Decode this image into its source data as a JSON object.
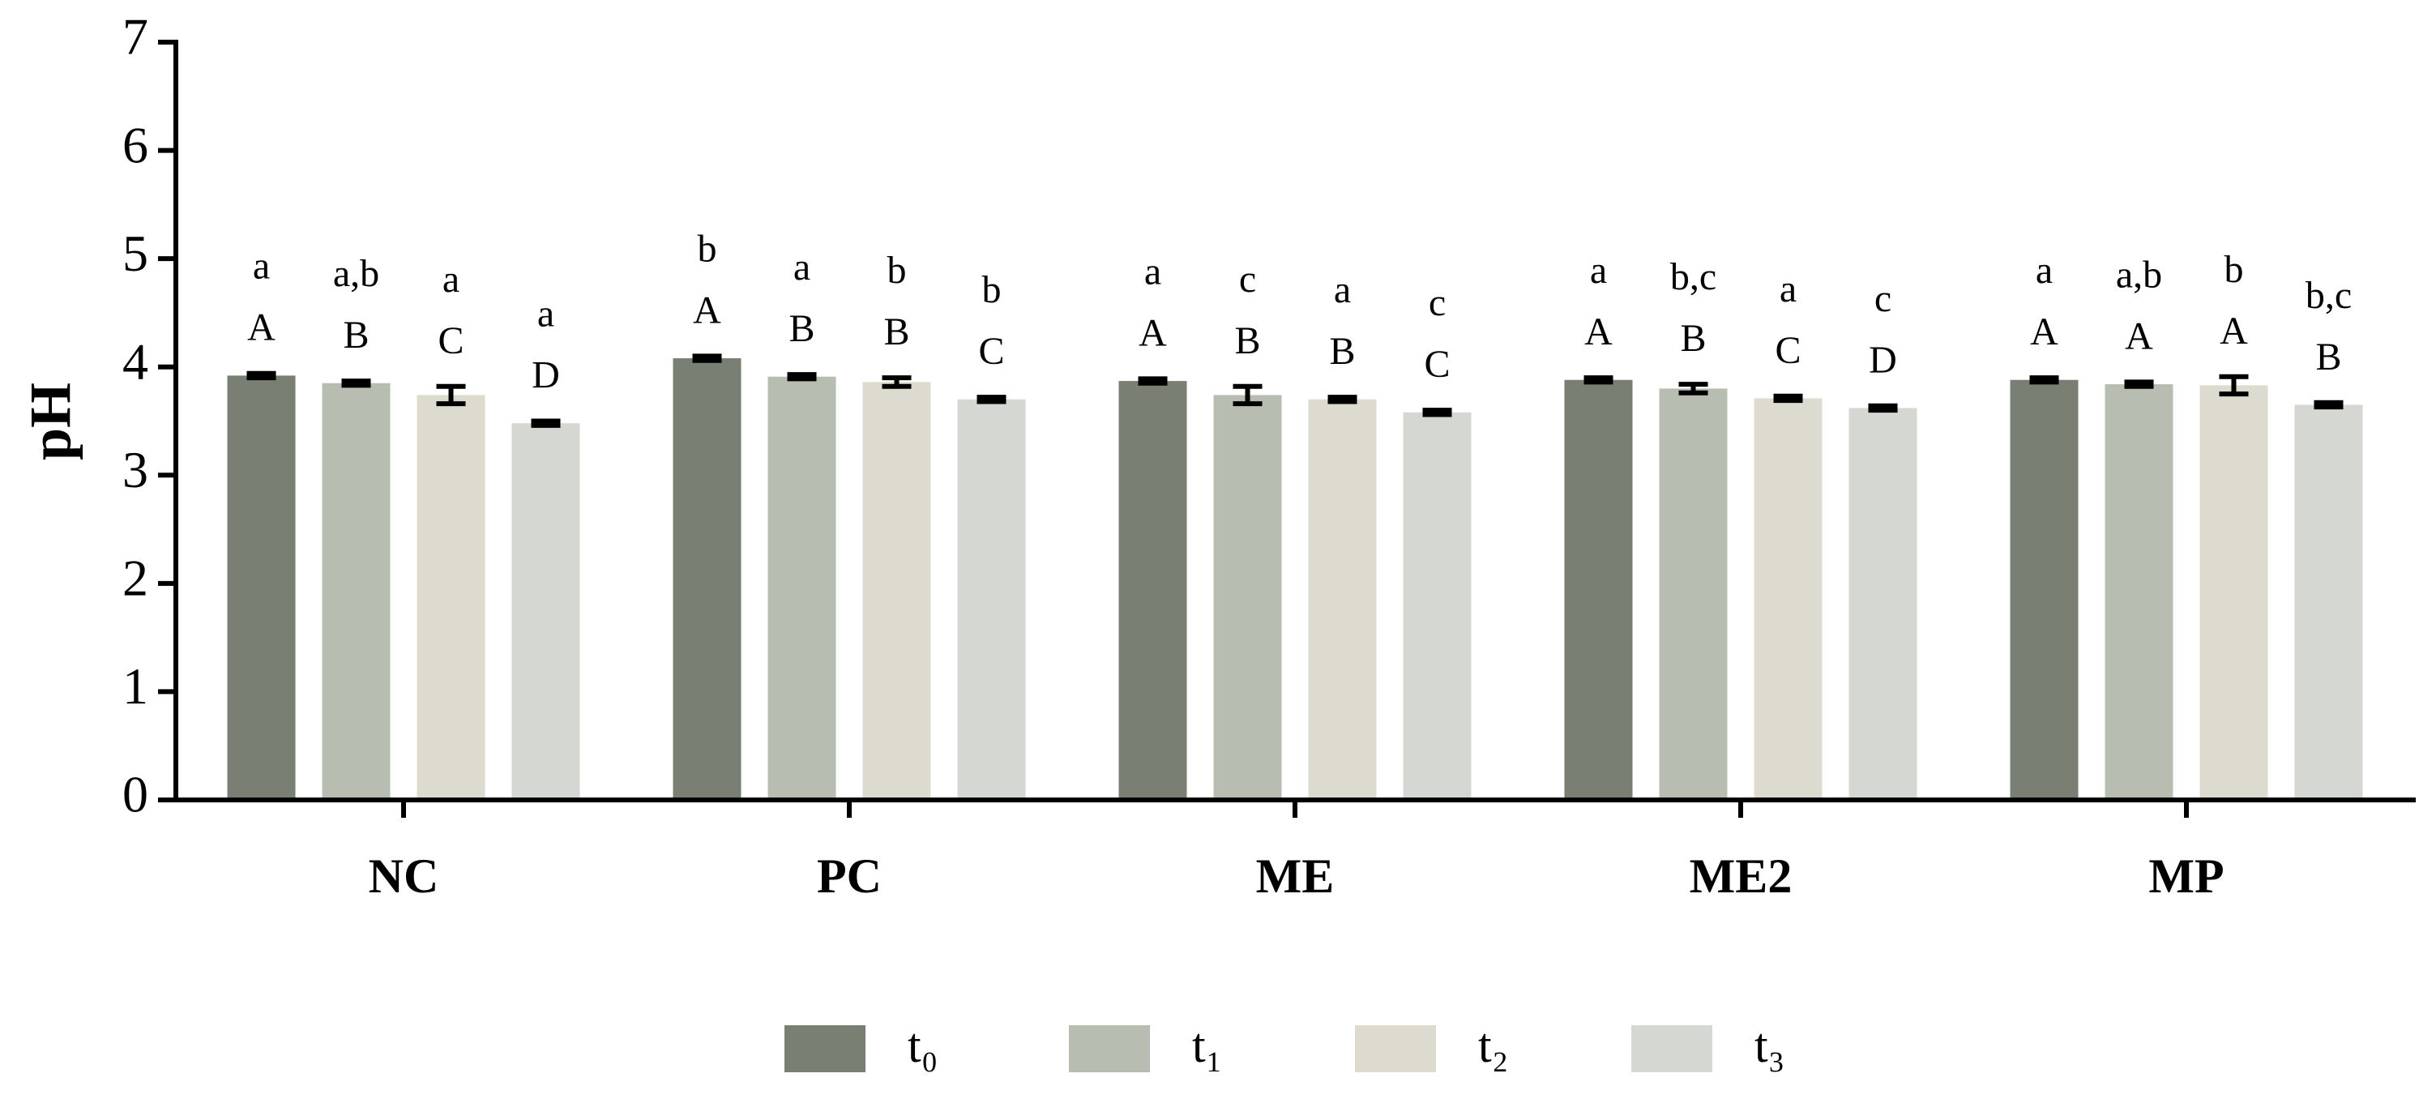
{
  "chart_data": {
    "type": "bar",
    "y_label": "pH",
    "categories": [
      "NC",
      "PC",
      "ME",
      "ME2",
      "MP"
    ],
    "ylim": [
      0,
      7
    ],
    "yticks": [
      0,
      1,
      2,
      3,
      4,
      5,
      6,
      7
    ],
    "legend": "bottom",
    "series": [
      {
        "name": "t₀",
        "color": "#7a7f73",
        "values": [
          3.92,
          4.08,
          3.87,
          3.88,
          3.88
        ],
        "errors": [
          0.02,
          0.02,
          0.02,
          0.02,
          0.02
        ],
        "upper_labels": [
          "A",
          "A",
          "A",
          "A",
          "A"
        ],
        "lower_labels": [
          "a",
          "b",
          "a",
          "a",
          "a"
        ]
      },
      {
        "name": "t₁",
        "color": "#b8bdb2",
        "values": [
          3.85,
          3.91,
          3.74,
          3.8,
          3.84
        ],
        "errors": [
          0.02,
          0.02,
          0.08,
          0.04,
          0.02
        ],
        "upper_labels": [
          "B",
          "B",
          "B",
          "B",
          "A"
        ],
        "lower_labels": [
          "a,b",
          "a",
          "c",
          "b,c",
          "a,b"
        ]
      },
      {
        "name": "t₂",
        "color": "#dddbcf",
        "values": [
          3.74,
          3.86,
          3.7,
          3.71,
          3.83
        ],
        "errors": [
          0.08,
          0.04,
          0.02,
          0.02,
          0.08
        ],
        "upper_labels": [
          "C",
          "B",
          "B",
          "C",
          "A"
        ],
        "lower_labels": [
          "a",
          "b",
          "a",
          "a",
          "b"
        ]
      },
      {
        "name": "t₃",
        "color": "#d5d7d2",
        "values": [
          3.48,
          3.7,
          3.58,
          3.62,
          3.65
        ],
        "errors": [
          0.02,
          0.02,
          0.02,
          0.02,
          0.02
        ],
        "upper_labels": [
          "D",
          "C",
          "C",
          "D",
          "B"
        ],
        "lower_labels": [
          "a",
          "b",
          "c",
          "c",
          "b,c"
        ]
      }
    ]
  }
}
